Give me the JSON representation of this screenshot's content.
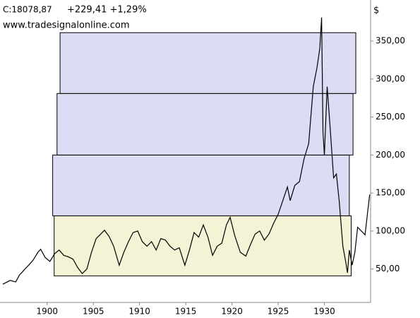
{
  "chart_data": {
    "type": "line",
    "last_price": "C:18078,87",
    "change": "+229,41 +1,29%",
    "change_color": "#1a9a1a",
    "source": "www.tradesignalonline.com",
    "unit": "$",
    "x": [
      1895.2,
      1896,
      1896.6,
      1897,
      1897.6,
      1898,
      1898.5,
      1899,
      1899.3,
      1899.8,
      1900.3,
      1900.8,
      1901.3,
      1901.8,
      1902.3,
      1902.8,
      1903.3,
      1903.8,
      1904.3,
      1904.8,
      1905.3,
      1905.8,
      1906.2,
      1906.7,
      1907.2,
      1907.8,
      1908.3,
      1908.8,
      1909.3,
      1909.8,
      1910.3,
      1910.8,
      1911.3,
      1911.8,
      1912.3,
      1912.8,
      1913.3,
      1913.8,
      1914.3,
      1914.9,
      1915.4,
      1915.9,
      1916.4,
      1916.9,
      1917.4,
      1917.9,
      1918.4,
      1918.9,
      1919.4,
      1919.8,
      1920.3,
      1920.9,
      1921.5,
      1922,
      1922.5,
      1923,
      1923.5,
      1924,
      1924.5,
      1925,
      1925.5,
      1926,
      1926.3,
      1926.8,
      1927.3,
      1927.8,
      1928.3,
      1928.8,
      1929.2,
      1929.5,
      1929.7,
      1929.85,
      1930,
      1930.3,
      1930.6,
      1931,
      1931.3,
      1931.6,
      1932,
      1932.3,
      1932.5,
      1932.7,
      1933,
      1933.3,
      1933.6,
      1934,
      1934.4,
      1934.9
    ],
    "values": [
      30,
      35,
      33,
      42,
      50,
      55,
      62,
      72,
      76,
      65,
      60,
      70,
      75,
      68,
      66,
      63,
      52,
      44,
      50,
      72,
      90,
      96,
      101,
      93,
      80,
      55,
      72,
      86,
      98,
      100,
      86,
      80,
      86,
      75,
      90,
      88,
      80,
      75,
      78,
      55,
      75,
      98,
      92,
      108,
      92,
      68,
      80,
      84,
      108,
      118,
      94,
      72,
      67,
      82,
      96,
      100,
      88,
      96,
      110,
      122,
      140,
      158,
      140,
      160,
      165,
      195,
      215,
      290,
      315,
      340,
      381,
      230,
      200,
      290,
      240,
      170,
      175,
      140,
      80,
      60,
      45,
      75,
      55,
      72,
      105,
      100,
      95,
      148
    ],
    "color": "#000000",
    "zones": [
      {
        "x0": 1900.76,
        "x1": 1932.9,
        "y0": 41,
        "y1": 120,
        "color": "#f5f3d6"
      },
      {
        "x0": 1900.6,
        "x1": 1932.7,
        "y0": 120,
        "y1": 200,
        "color": "#dcdcf5"
      },
      {
        "x0": 1901.07,
        "x1": 1933.1,
        "y0": 200,
        "y1": 281,
        "color": "#dcdcf5"
      },
      {
        "x0": 1901.4,
        "x1": 1933.4,
        "y0": 281,
        "y1": 361,
        "color": "#dcdcf5"
      }
    ],
    "xlim": [
      1894.9,
      1935
    ],
    "xticks": [
      1900,
      1905,
      1910,
      1915,
      1920,
      1925,
      1930
    ],
    "ylim": [
      6,
      404
    ],
    "yticks": [
      {
        "value": 50,
        "label": "50,00"
      },
      {
        "value": 100,
        "label": "100,00"
      },
      {
        "value": 150,
        "label": "150,00"
      },
      {
        "value": 200,
        "label": "200,00"
      },
      {
        "value": 250,
        "label": "250,00"
      },
      {
        "value": 300,
        "label": "300,00"
      },
      {
        "value": 350,
        "label": "350,00"
      }
    ],
    "grid": false
  }
}
